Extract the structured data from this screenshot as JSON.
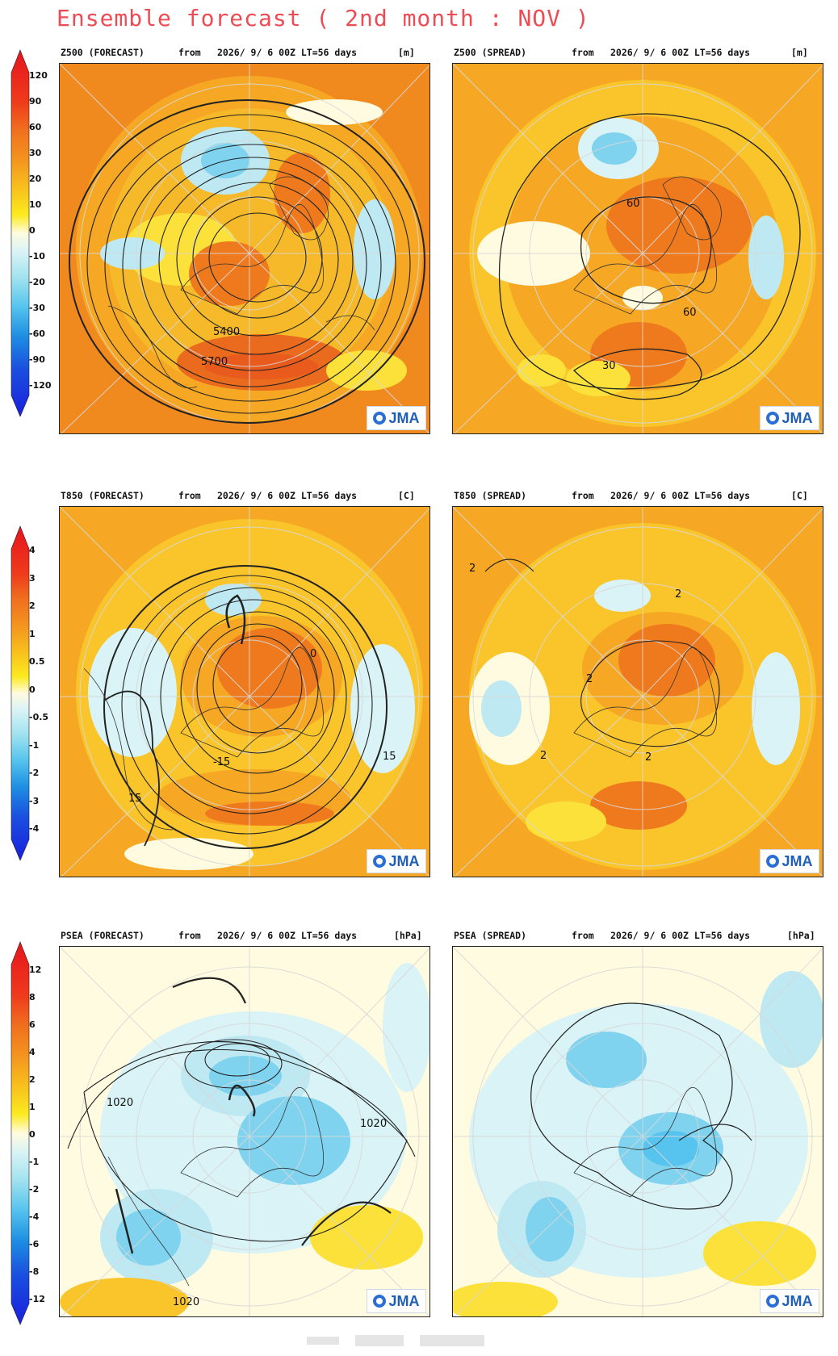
{
  "title": "Ensemble forecast ( 2nd month : NOV )",
  "colors": {
    "title": "#ee4c55",
    "brand": "#1f5fb8"
  },
  "brand_badge": "JMA",
  "colorbars": [
    {
      "name": "z500",
      "ticks": [
        "120",
        "90",
        "60",
        "30",
        "20",
        "10",
        "0",
        "-10",
        "-20",
        "-30",
        "-60",
        "-90",
        "-120"
      ]
    },
    {
      "name": "t850",
      "ticks": [
        "4",
        "3",
        "2",
        "1",
        "0.5",
        "0",
        "-0.5",
        "-1",
        "-2",
        "-3",
        "-4"
      ]
    },
    {
      "name": "psea",
      "ticks": [
        "12",
        "8",
        "6",
        "4",
        "2",
        "1",
        "0",
        "-1",
        "-2",
        "-4",
        "-6",
        "-8",
        "-12"
      ]
    }
  ],
  "panels": {
    "z500_forecast": {
      "var": "Z500 (FORECAST)",
      "from": "from",
      "time": "2026/ 9/ 6 00Z LT=56 days",
      "unit": "[m]",
      "labels": [
        "5400",
        "5700"
      ]
    },
    "z500_spread": {
      "var": "Z500 (SPREAD)",
      "from": "from",
      "time": "2026/ 9/ 6 00Z LT=56 days",
      "unit": "[m]",
      "labels": [
        "60",
        "60",
        "30"
      ]
    },
    "t850_forecast": {
      "var": "T850 (FORECAST)",
      "from": "from",
      "time": "2026/ 9/ 6 00Z LT=56 days",
      "unit": "[C]",
      "labels": [
        "-15",
        "15",
        "15",
        "0"
      ]
    },
    "t850_spread": {
      "var": "T850 (SPREAD)",
      "from": "from",
      "time": "2026/ 9/ 6 00Z LT=56 days",
      "unit": "[C]",
      "labels": [
        "2",
        "2",
        "2",
        "2",
        "2"
      ]
    },
    "psea_forecast": {
      "var": "PSEA (FORECAST)",
      "from": "from",
      "time": "2026/ 9/ 6 00Z LT=56 days",
      "unit": "[hPa]",
      "labels": [
        "1020",
        "1020",
        "1020"
      ]
    },
    "psea_spread": {
      "var": "PSEA (SPREAD)",
      "from": "from",
      "time": "2026/ 9/ 6 00Z LT=56 days",
      "unit": "[hPa]",
      "labels": []
    }
  }
}
